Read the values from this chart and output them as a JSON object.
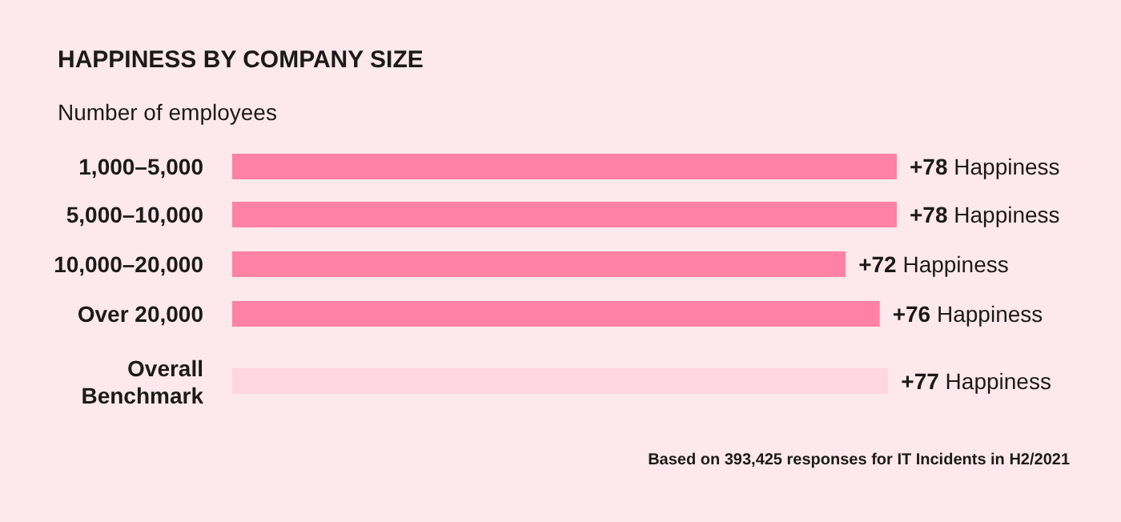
{
  "chart_data": {
    "type": "bar",
    "orientation": "horizontal",
    "title": "HAPPINESS BY COMPANY SIZE",
    "ylabel": "Number of employees",
    "categories": [
      "1,000–5,000",
      "5,000–10,000",
      "10,000–20,000",
      "Over 20,000",
      "Overall Benchmark"
    ],
    "values": [
      78,
      78,
      72,
      76,
      77
    ],
    "colors": [
      "#ff81a5",
      "#ff81a5",
      "#ff81a5",
      "#ff81a5",
      "#ffd6e1"
    ],
    "value_labels": [
      "+78 Happiness",
      "+78 Happiness",
      "+72 Happiness",
      "+76 Happiness",
      "+77 Happiness"
    ],
    "annotations": [
      "Based on 393,425 responses for IT Incidents in H2/2021"
    ]
  }
}
